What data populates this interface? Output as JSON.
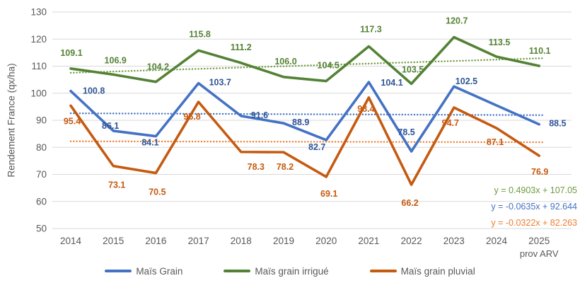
{
  "chart_data": {
    "type": "line",
    "title": "",
    "ylabel": "Rendement France (qx/ha)",
    "categories": [
      "2014",
      "2015",
      "2016",
      "2017",
      "2018",
      "2019",
      "2020",
      "2021",
      "2022",
      "2023",
      "2024",
      "2025"
    ],
    "last_category_note": "prov ARV",
    "ylim": [
      50,
      130
    ],
    "ytick_step": 10,
    "grid": true,
    "legend_position": "bottom",
    "axis_text_color": "#595959",
    "gridline_color": "#D9D9D9",
    "series": [
      {
        "name": "Maïs Grain",
        "color": "#4472C4",
        "label_color": "#2F5597",
        "values": [
          100.8,
          86.1,
          84.1,
          103.7,
          91.6,
          88.9,
          82.7,
          104.1,
          78.5,
          102.5,
          95.5,
          88.5
        ],
        "labels": [
          "100.8",
          "86.1",
          "84.1",
          "103.7",
          "91.6",
          "88.9",
          "82.7",
          "104.1",
          "78.5",
          "102.5",
          "",
          "88.5"
        ]
      },
      {
        "name": "Maïs grain irrigué",
        "color": "#548235",
        "label_color": "#548235",
        "values": [
          109.1,
          106.9,
          104.2,
          115.8,
          111.2,
          106.0,
          104.5,
          117.3,
          103.5,
          120.7,
          113.5,
          110.1
        ],
        "labels": [
          "109.1",
          "106.9",
          "104.2",
          "115.8",
          "111.2",
          "106.0",
          "104.5",
          "117.3",
          "103.5",
          "120.7",
          "113.5",
          "110.1"
        ]
      },
      {
        "name": "Maïs grain pluvial",
        "color": "#C55A11",
        "label_color": "#C55A11",
        "values": [
          95.4,
          73.1,
          70.5,
          96.8,
          78.3,
          78.2,
          69.1,
          98.4,
          66.2,
          94.7,
          87.1,
          76.9
        ],
        "labels": [
          "95.4",
          "73.1",
          "70.5",
          "96.8",
          "78.3",
          "78.2",
          "69.1",
          "98.4",
          "66.2",
          "94.7",
          "87.1",
          "76.9"
        ]
      }
    ],
    "trendlines": [
      {
        "for": "Maïs grain irrigué",
        "equation": "y = 0.4903x + 107.05",
        "slope": 0.4903,
        "intercept": 107.05,
        "color": "#6F9C3F"
      },
      {
        "for": "Maïs Grain",
        "equation": "y = -0.0635x + 92.644",
        "slope": -0.0635,
        "intercept": 92.644,
        "color": "#4472C4"
      },
      {
        "for": "Maïs grain pluvial",
        "equation": "y = -0.0322x + 82.263",
        "slope": -0.0322,
        "intercept": 82.263,
        "color": "#ED7D31"
      }
    ]
  }
}
